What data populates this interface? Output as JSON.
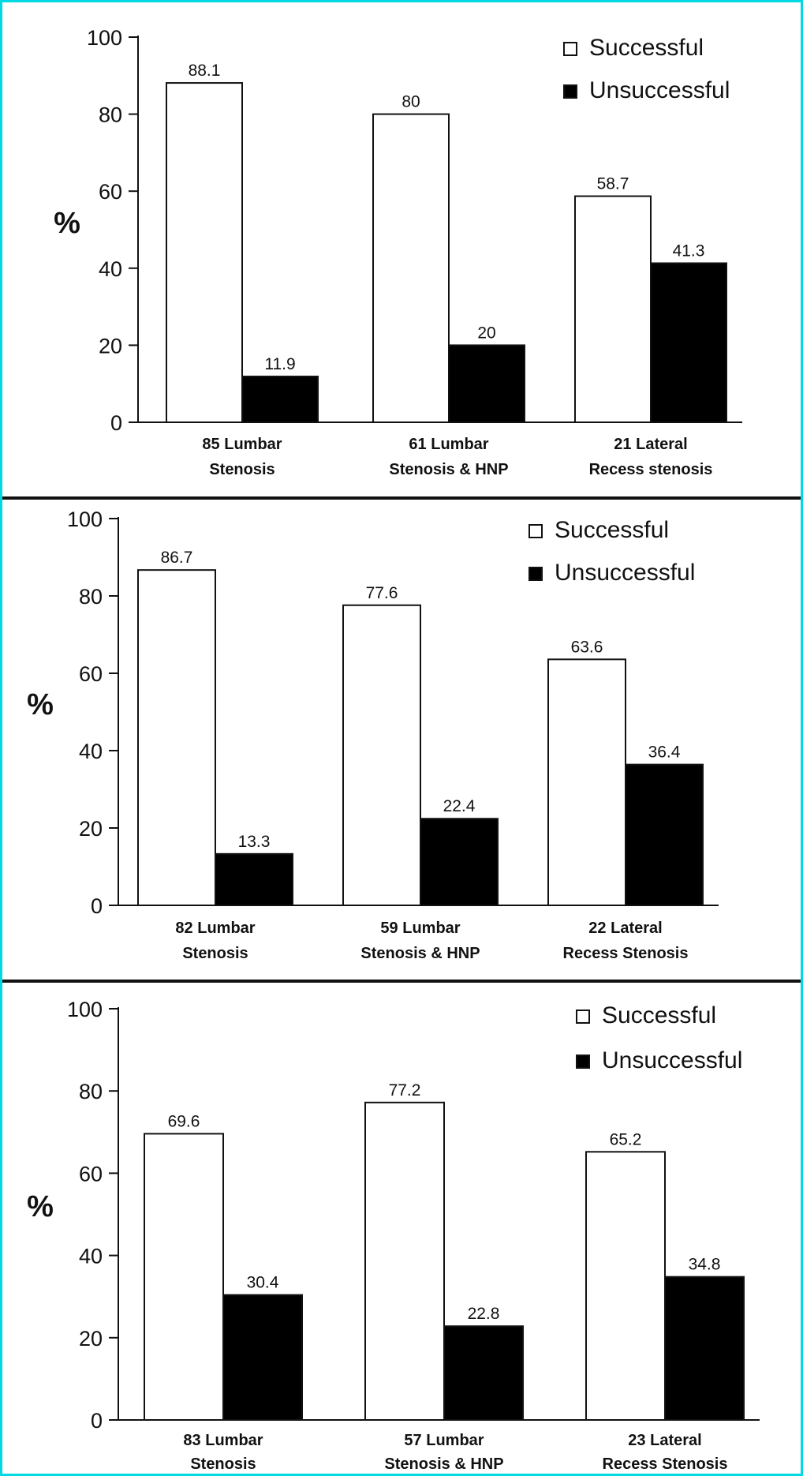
{
  "colors": {
    "border": "#00d9e4",
    "successful": "#ffffff",
    "unsuccessful": "#000000"
  },
  "chart_data": [
    {
      "type": "bar",
      "ylabel": "%",
      "ylim": [
        0,
        100
      ],
      "yticks": [
        "0",
        "20",
        "40",
        "60",
        "80",
        "100"
      ],
      "categories": [
        [
          "85 Lumbar",
          "Stenosis"
        ],
        [
          "61 Lumbar",
          "Stenosis & HNP"
        ],
        [
          "21 Lateral",
          "Recess stenosis"
        ]
      ],
      "series": [
        {
          "name": "Successful",
          "values": [
            88.1,
            80,
            58.7
          ],
          "labels": [
            "88.1",
            "80",
            "58.7"
          ]
        },
        {
          "name": "Unsuccessful",
          "values": [
            11.9,
            20,
            41.3
          ],
          "labels": [
            "11.9",
            "20",
            "41.3"
          ]
        }
      ],
      "legend": "top-right",
      "grid": false
    },
    {
      "type": "bar",
      "ylabel": "%",
      "ylim": [
        0,
        100
      ],
      "yticks": [
        "0",
        "20",
        "40",
        "60",
        "80",
        "100"
      ],
      "categories": [
        [
          "82 Lumbar",
          "Stenosis"
        ],
        [
          "59 Lumbar",
          "Stenosis & HNP"
        ],
        [
          "22 Lateral",
          "Recess Stenosis"
        ]
      ],
      "series": [
        {
          "name": "Successful",
          "values": [
            86.7,
            77.6,
            63.6
          ],
          "labels": [
            "86.7",
            "77.6",
            "63.6"
          ]
        },
        {
          "name": "Unsuccessful",
          "values": [
            13.3,
            22.4,
            36.4
          ],
          "labels": [
            "13.3",
            "22.4",
            "36.4"
          ]
        }
      ],
      "legend": "top-right",
      "grid": false
    },
    {
      "type": "bar",
      "ylabel": "%",
      "ylim": [
        0,
        100
      ],
      "yticks": [
        "0",
        "20",
        "40",
        "60",
        "80",
        "100"
      ],
      "categories": [
        [
          "83 Lumbar",
          "Stenosis"
        ],
        [
          "57 Lumbar",
          "Stenosis & HNP"
        ],
        [
          "23 Lateral",
          "Recess Stenosis"
        ]
      ],
      "series": [
        {
          "name": "Successful",
          "values": [
            69.6,
            77.2,
            65.2
          ],
          "labels": [
            "69.6",
            "77.2",
            "65.2"
          ]
        },
        {
          "name": "Unsuccessful",
          "values": [
            30.4,
            22.8,
            34.8
          ],
          "labels": [
            "30.4",
            "22.8",
            "34.8"
          ]
        }
      ],
      "legend": "top-right",
      "grid": false
    }
  ]
}
